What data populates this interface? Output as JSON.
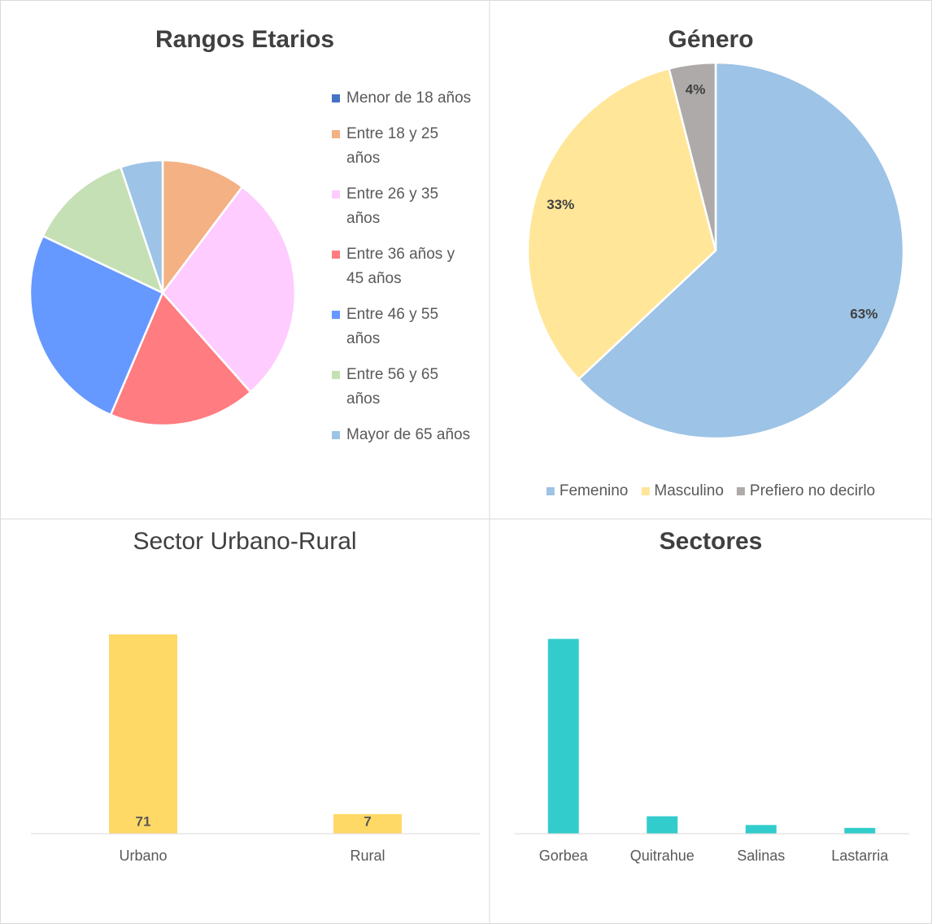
{
  "chart_data": [
    {
      "type": "pie",
      "title": "Rangos Etarios",
      "categories": [
        "Menor de 18 años",
        "Entre 18 y 25 años",
        "Entre 26 y 35 años",
        "Entre 36 años y 45 años",
        "Entre 46 y 55 años",
        "Entre 56 y 65 años",
        "Mayor de 65 años"
      ],
      "values": [
        0,
        8,
        22,
        14,
        20,
        10,
        4
      ],
      "colors": [
        "#4472c4",
        "#f4b183",
        "#ffccff",
        "#ff7c80",
        "#6699ff",
        "#c5e0b4",
        "#9dc3e6"
      ],
      "legend": "right"
    },
    {
      "type": "pie",
      "title": "Género",
      "categories": [
        "Femenino",
        "Masculino",
        "Prefiero no decirlo"
      ],
      "values": [
        63,
        33,
        4
      ],
      "value_labels": [
        "63%",
        "33%",
        "4%"
      ],
      "colors": [
        "#9dc3e6",
        "#ffe699",
        "#aeaaaa"
      ],
      "legend": "bottom"
    },
    {
      "type": "bar",
      "title": "Sector Urbano-Rural",
      "categories": [
        "Urbano",
        "Rural"
      ],
      "values": [
        71,
        7
      ],
      "color": "#ffd966",
      "ylim": [
        0,
        80
      ],
      "data_labels": true
    },
    {
      "type": "bar",
      "title": "Sectores",
      "categories": [
        "Gorbea",
        "Quitrahue",
        "Salinas",
        "Lastarria"
      ],
      "values": [
        67,
        6,
        3,
        2
      ],
      "color": "#33cccc",
      "ylim": [
        0,
        80
      ],
      "data_labels": false
    }
  ]
}
